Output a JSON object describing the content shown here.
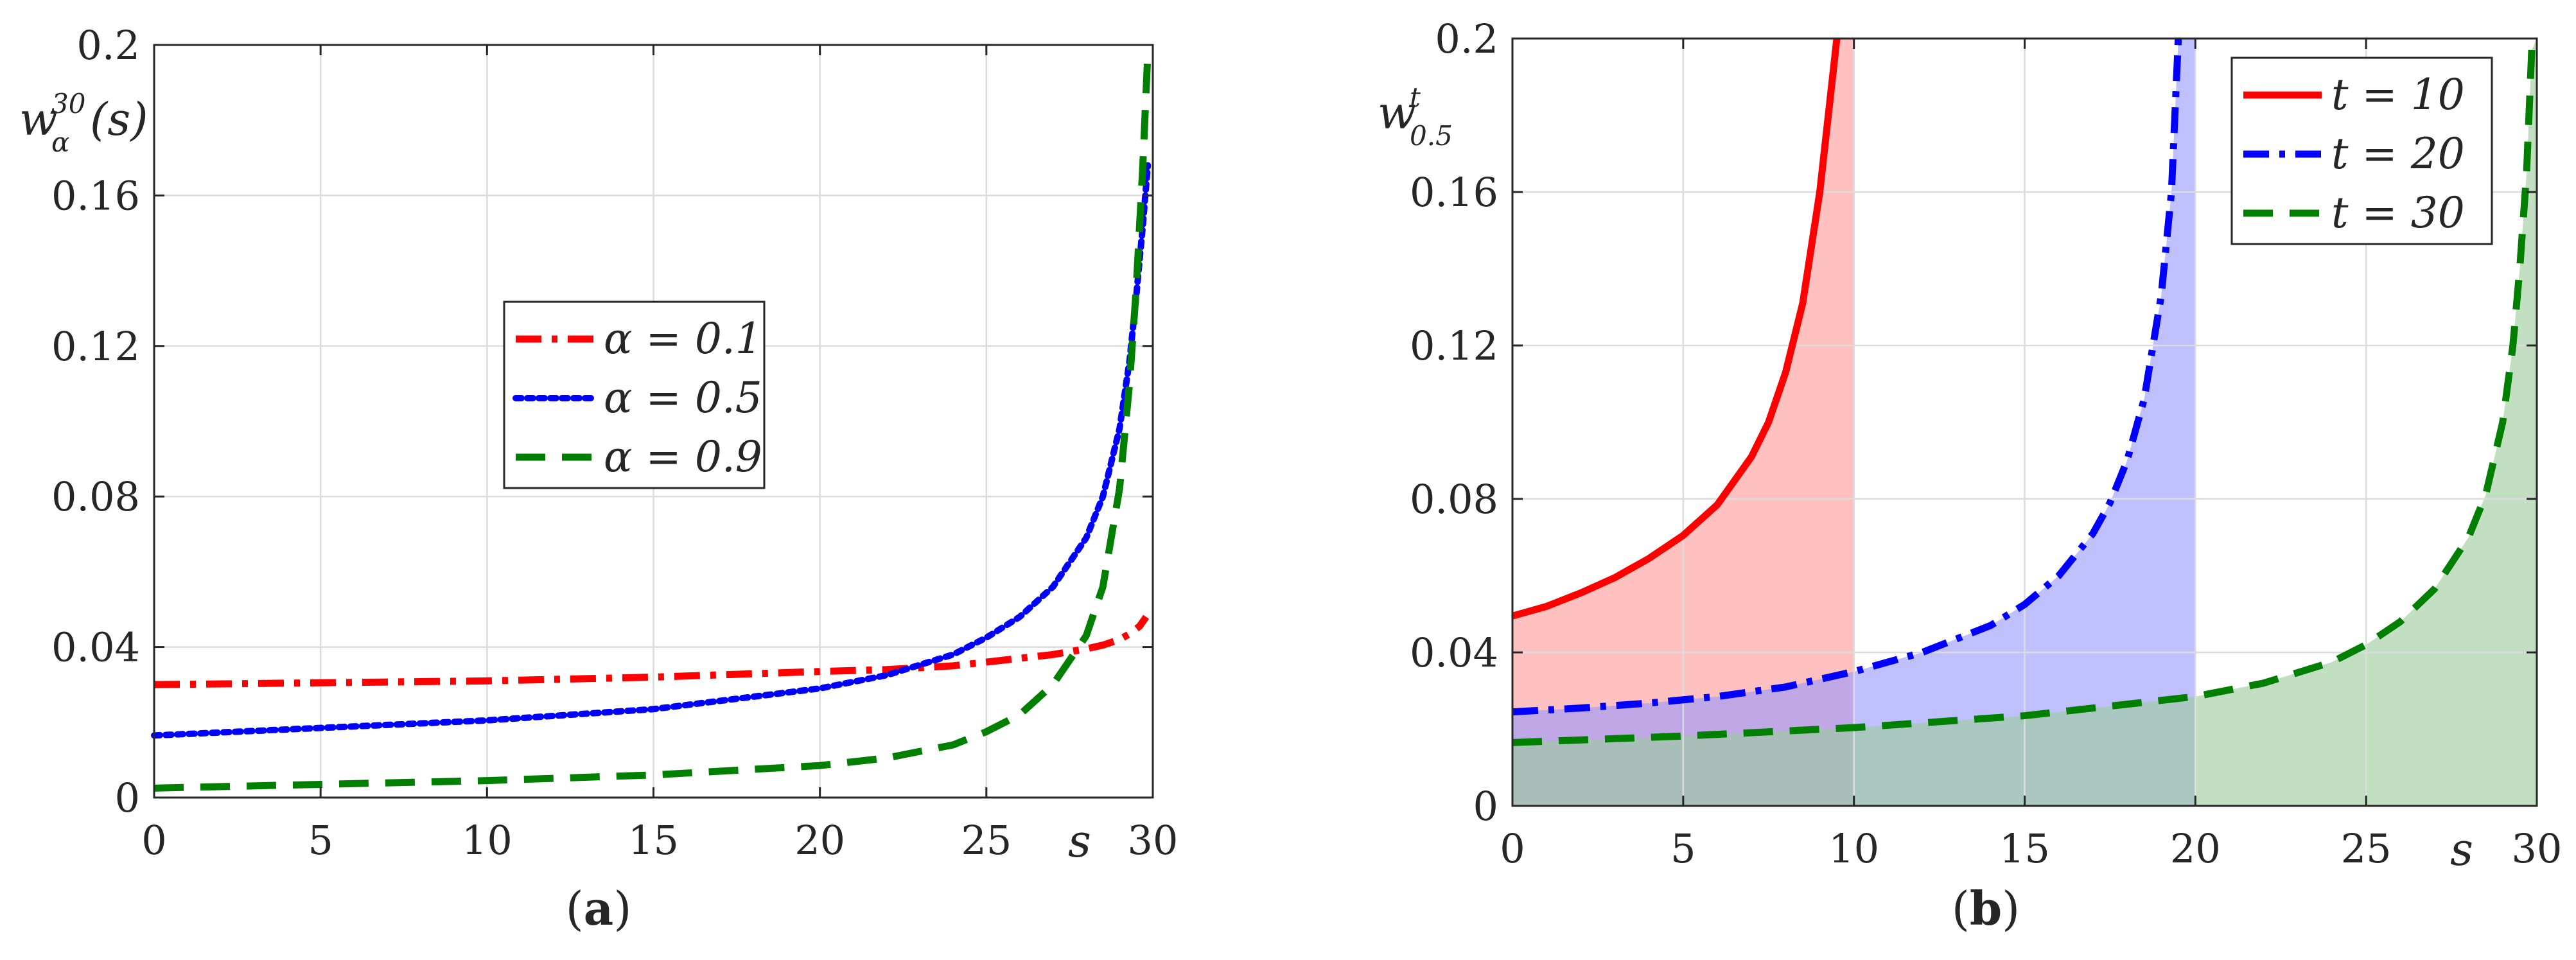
{
  "chart_data": [
    {
      "type": "line",
      "caption_letter": "a",
      "ylabel": "w_α^30(s)",
      "ylabel_main": "w",
      "ylabel_sub": "α",
      "ylabel_sup": "30",
      "ylabel_arg": "(s)",
      "xlabel": "s",
      "xlim": [
        0,
        30
      ],
      "ylim": [
        0,
        0.2
      ],
      "xticks": [
        "0",
        "5",
        "10",
        "15",
        "20",
        "25",
        "30"
      ],
      "yticks": [
        "0",
        "0.04",
        "0.08",
        "0.12",
        "0.16",
        "0.2"
      ],
      "grid": true,
      "legend_position": "center",
      "series": [
        {
          "name": "α = 0.1",
          "legend_label": "α = 0.1",
          "color": "#ff0000",
          "dash": "dashdot",
          "x": [
            0,
            5,
            10,
            15,
            20,
            22,
            24,
            25,
            26,
            27,
            28,
            28.5,
            29,
            29.3,
            29.6,
            29.8
          ],
          "y": [
            0.03,
            0.0305,
            0.031,
            0.032,
            0.0335,
            0.034,
            0.035,
            0.036,
            0.037,
            0.038,
            0.0395,
            0.0405,
            0.042,
            0.0435,
            0.0455,
            0.048
          ]
        },
        {
          "name": "α = 0.5",
          "legend_label": "α = 0.5",
          "color": "#0000ff",
          "dash": "dotted",
          "x": [
            0,
            5,
            10,
            15,
            20,
            22,
            24,
            25,
            26,
            27,
            28,
            28.5,
            29,
            29.3,
            29.5,
            29.7,
            29.85
          ],
          "y": [
            0.0165,
            0.0185,
            0.0205,
            0.0235,
            0.029,
            0.0325,
            0.038,
            0.0425,
            0.048,
            0.056,
            0.069,
            0.08,
            0.098,
            0.116,
            0.133,
            0.152,
            0.168
          ]
        },
        {
          "name": "α = 0.9",
          "legend_label": "α = 0.9",
          "color": "#007f00",
          "dash": "dashed",
          "x": [
            0,
            5,
            10,
            15,
            20,
            22,
            24,
            25,
            26,
            27,
            28,
            28.5,
            29,
            29.3,
            29.5,
            29.7,
            29.85
          ],
          "y": [
            0.0025,
            0.0035,
            0.0045,
            0.006,
            0.0085,
            0.0105,
            0.014,
            0.0175,
            0.022,
            0.03,
            0.043,
            0.056,
            0.082,
            0.11,
            0.135,
            0.168,
            0.198
          ]
        }
      ]
    },
    {
      "type": "area",
      "caption_letter": "b",
      "ylabel": "w_0.5^t",
      "ylabel_main": "w",
      "ylabel_sub": "0.5",
      "ylabel_sup": "t",
      "xlabel": "s",
      "xlim": [
        0,
        30
      ],
      "ylim": [
        0,
        0.2
      ],
      "xticks": [
        "0",
        "5",
        "10",
        "15",
        "20",
        "25",
        "30"
      ],
      "yticks": [
        "0",
        "0.04",
        "0.08",
        "0.12",
        "0.16",
        "0.2"
      ],
      "grid": true,
      "legend_position": "top-right",
      "series": [
        {
          "name": "t = 10",
          "legend_label": "t = 10",
          "color": "#ff0000",
          "fill": "#ff9a9a",
          "dash": "solid",
          "x": [
            0,
            1,
            2,
            3,
            4,
            5,
            6,
            7,
            7.5,
            8,
            8.5,
            9,
            9.3,
            9.5
          ],
          "y": [
            0.0495,
            0.052,
            0.0555,
            0.0595,
            0.0645,
            0.0705,
            0.0785,
            0.091,
            0.1,
            0.113,
            0.131,
            0.16,
            0.184,
            0.2
          ],
          "fill_x_end": 10
        },
        {
          "name": "t = 20",
          "legend_label": "t = 20",
          "color": "#0000ff",
          "fill": "#9999ff",
          "dash": "dashdot",
          "x": [
            0,
            2,
            4,
            6,
            8,
            10,
            12,
            14,
            15,
            16,
            17,
            17.5,
            18,
            18.5,
            19,
            19.3,
            19.5
          ],
          "y": [
            0.0245,
            0.0255,
            0.0268,
            0.0285,
            0.031,
            0.035,
            0.04,
            0.047,
            0.0525,
            0.06,
            0.071,
            0.079,
            0.09,
            0.106,
            0.133,
            0.16,
            0.2
          ],
          "fill_x_end": 20
        },
        {
          "name": "t = 30",
          "legend_label": "t = 30",
          "color": "#007f00",
          "fill": "#9dcc9d",
          "dash": "dashed",
          "x": [
            0,
            5,
            10,
            15,
            20,
            22,
            24,
            25,
            26,
            27,
            28,
            28.5,
            29,
            29.3,
            29.5,
            29.7,
            29.85
          ],
          "y": [
            0.0165,
            0.0182,
            0.0204,
            0.0235,
            0.0285,
            0.032,
            0.0375,
            0.042,
            0.048,
            0.0565,
            0.07,
            0.081,
            0.1,
            0.12,
            0.14,
            0.165,
            0.197
          ],
          "fill_x_end": 30
        }
      ]
    }
  ]
}
